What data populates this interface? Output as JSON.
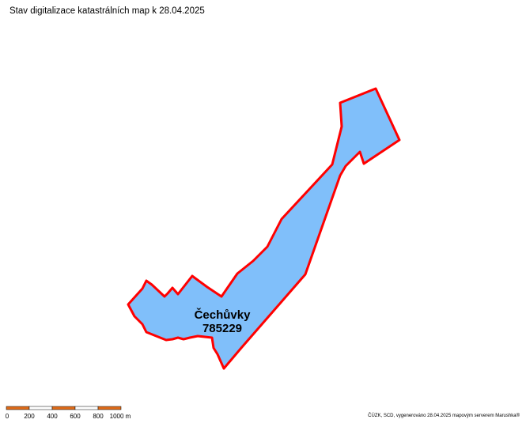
{
  "map": {
    "title": "Stav digitalizace katastrálních map k 28.04.2025",
    "parcel": {
      "name": "Čechůvky",
      "code": "785229",
      "fill_color": "#80bffa",
      "stroke_color": "#ff0000"
    },
    "scale_bar": {
      "labels": [
        "0",
        "200",
        "400",
        "600",
        "800",
        "1000 m"
      ],
      "colors": [
        "#e06c1a",
        "#ffffff"
      ]
    },
    "credit": "ČÚZK, SCD, vygenerováno 28.04.2025 mapovým serverem Marushka®"
  }
}
